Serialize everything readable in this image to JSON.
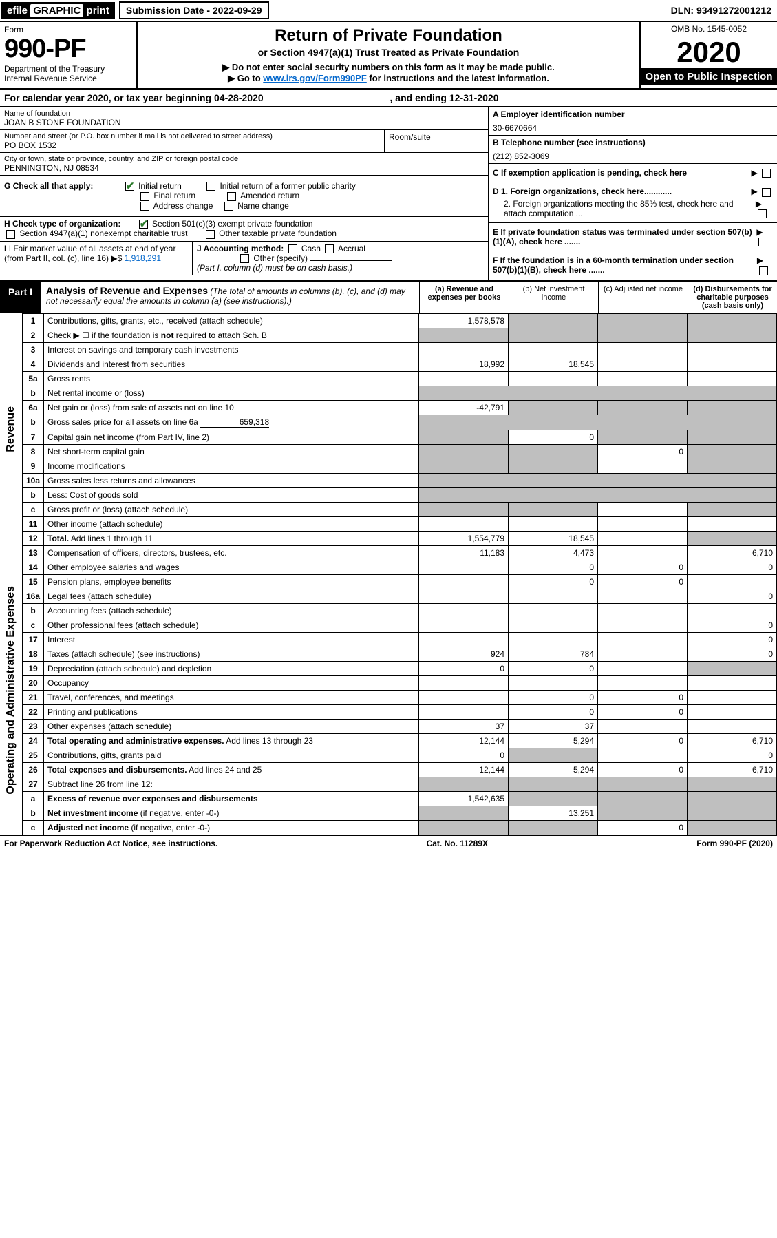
{
  "top": {
    "efile_prefix": "efile",
    "efile_graphic": "GRAPHIC",
    "efile_print": "print",
    "submission_label": "Submission Date - 2022-09-29",
    "dln": "DLN: 93491272001212"
  },
  "header": {
    "form_label": "Form",
    "form_number": "990-PF",
    "dept": "Department of the Treasury",
    "irs": "Internal Revenue Service",
    "title": "Return of Private Foundation",
    "subtitle": "or Section 4947(a)(1) Trust Treated as Private Foundation",
    "instr1": "▶ Do not enter social security numbers on this form as it may be made public.",
    "instr2_pre": "▶ Go to ",
    "instr2_link": "www.irs.gov/Form990PF",
    "instr2_post": " for instructions and the latest information.",
    "omb": "OMB No. 1545-0052",
    "year": "2020",
    "open": "Open to Public Inspection"
  },
  "calendar": {
    "text_pre": "For calendar year 2020, or tax year beginning ",
    "begin": "04-28-2020",
    "mid": " , and ending ",
    "end": "12-31-2020"
  },
  "foundation": {
    "name_label": "Name of foundation",
    "name": "JOAN B STONE FOUNDATION",
    "addr_label": "Number and street (or P.O. box number if mail is not delivered to street address)",
    "addr": "PO BOX 1532",
    "room_label": "Room/suite",
    "city_label": "City or town, state or province, country, and ZIP or foreign postal code",
    "city": "PENNINGTON, NJ  08534",
    "ein_label": "A Employer identification number",
    "ein": "30-6670664",
    "phone_label": "B Telephone number (see instructions)",
    "phone": "(212) 852-3069",
    "pending_label": "C If exemption application is pending, check here"
  },
  "boxG": {
    "label": "G Check all that apply:",
    "opts": [
      "Initial return",
      "Initial return of a former public charity",
      "Final return",
      "Amended return",
      "Address change",
      "Name change"
    ],
    "checked": [
      true,
      false,
      false,
      false,
      false,
      false
    ]
  },
  "boxH": {
    "label": "H Check type of organization:",
    "opt1": "Section 501(c)(3) exempt private foundation",
    "opt2": "Section 4947(a)(1) nonexempt charitable trust",
    "opt3": "Other taxable private foundation"
  },
  "boxI": {
    "label": "I Fair market value of all assets at end of year (from Part II, col. (c), line 16)",
    "arrow": "▶$",
    "value": "1,918,291"
  },
  "boxJ": {
    "label": "J Accounting method:",
    "opts": [
      "Cash",
      "Accrual",
      "Other (specify)"
    ],
    "note": "(Part I, column (d) must be on cash basis.)"
  },
  "boxD": {
    "d1": "D 1. Foreign organizations, check here............",
    "d2": "2. Foreign organizations meeting the 85% test, check here and attach computation ..."
  },
  "boxE": "E  If private foundation status was terminated under section 507(b)(1)(A), check here .......",
  "boxF": "F  If the foundation is in a 60-month termination under section 507(b)(1)(B), check here .......",
  "part1": {
    "label": "Part I",
    "title": "Analysis of Revenue and Expenses",
    "note": "(The total of amounts in columns (b), (c), and (d) may not necessarily equal the amounts in column (a) (see instructions).)",
    "col_a": "(a)  Revenue and expenses per books",
    "col_b": "(b)  Net investment income",
    "col_c": "(c)  Adjusted net income",
    "col_d": "(d)  Disbursements for charitable purposes (cash basis only)"
  },
  "side_labels": {
    "revenue": "Revenue",
    "expenses": "Operating and Administrative Expenses"
  },
  "rows": {
    "r1": {
      "ln": "1",
      "desc": "Contributions, gifts, grants, etc., received (attach schedule)",
      "a": "1,578,578",
      "b_grey": true,
      "c_grey": true,
      "d_grey": true
    },
    "r2": {
      "ln": "2",
      "desc": "Check ▶ ☐ if the foundation is <b>not</b> required to attach Sch. B",
      "a_grey": true,
      "b_grey": true,
      "c_grey": true,
      "d_grey": true
    },
    "r3": {
      "ln": "3",
      "desc": "Interest on savings and temporary cash investments"
    },
    "r4": {
      "ln": "4",
      "desc": "Dividends and interest from securities",
      "a": "18,992",
      "b": "18,545"
    },
    "r5a": {
      "ln": "5a",
      "desc": "Gross rents"
    },
    "r5b": {
      "ln": "b",
      "desc": "Net rental income or (loss)",
      "tail_grey": true
    },
    "r6a": {
      "ln": "6a",
      "desc": "Net gain or (loss) from sale of assets not on line 10",
      "a": "-42,791",
      "b_grey": true,
      "c_grey": true,
      "d_grey": true
    },
    "r6b": {
      "ln": "b",
      "desc": "Gross sales price for all assets on line 6a",
      "inline": "659,318",
      "tail_grey": true
    },
    "r7": {
      "ln": "7",
      "desc": "Capital gain net income (from Part IV, line 2)",
      "a_grey": true,
      "b": "0",
      "c_grey": true,
      "d_grey": true
    },
    "r8": {
      "ln": "8",
      "desc": "Net short-term capital gain",
      "a_grey": true,
      "b_grey": true,
      "c": "0",
      "d_grey": true
    },
    "r9": {
      "ln": "9",
      "desc": "Income modifications",
      "a_grey": true,
      "b_grey": true,
      "d_grey": true
    },
    "r10a": {
      "ln": "10a",
      "desc": "Gross sales less returns and allowances",
      "tail_grey": true
    },
    "r10b": {
      "ln": "b",
      "desc": "Less: Cost of goods sold",
      "tail_grey": true
    },
    "r10c": {
      "ln": "c",
      "desc": "Gross profit or (loss) (attach schedule)",
      "a_grey": true,
      "b_grey": true,
      "d_grey": true
    },
    "r11": {
      "ln": "11",
      "desc": "Other income (attach schedule)"
    },
    "r12": {
      "ln": "12",
      "desc": "<b>Total.</b> Add lines 1 through 11",
      "a": "1,554,779",
      "b": "18,545",
      "d_grey": true
    },
    "r13": {
      "ln": "13",
      "desc": "Compensation of officers, directors, trustees, etc.",
      "a": "11,183",
      "b": "4,473",
      "d": "6,710"
    },
    "r14": {
      "ln": "14",
      "desc": "Other employee salaries and wages",
      "b": "0",
      "c": "0",
      "d": "0"
    },
    "r15": {
      "ln": "15",
      "desc": "Pension plans, employee benefits",
      "b": "0",
      "c": "0"
    },
    "r16a": {
      "ln": "16a",
      "desc": "Legal fees (attach schedule)",
      "d": "0"
    },
    "r16b": {
      "ln": "b",
      "desc": "Accounting fees (attach schedule)"
    },
    "r16c": {
      "ln": "c",
      "desc": "Other professional fees (attach schedule)",
      "d": "0"
    },
    "r17": {
      "ln": "17",
      "desc": "Interest",
      "d": "0"
    },
    "r18": {
      "ln": "18",
      "desc": "Taxes (attach schedule) (see instructions)",
      "a": "924",
      "b": "784",
      "d": "0"
    },
    "r19": {
      "ln": "19",
      "desc": "Depreciation (attach schedule) and depletion",
      "a": "0",
      "b": "0",
      "d_grey": true
    },
    "r20": {
      "ln": "20",
      "desc": "Occupancy"
    },
    "r21": {
      "ln": "21",
      "desc": "Travel, conferences, and meetings",
      "b": "0",
      "c": "0"
    },
    "r22": {
      "ln": "22",
      "desc": "Printing and publications",
      "b": "0",
      "c": "0"
    },
    "r23": {
      "ln": "23",
      "desc": "Other expenses (attach schedule)",
      "a": "37",
      "b": "37"
    },
    "r24": {
      "ln": "24",
      "desc": "<b>Total operating and administrative expenses.</b> Add lines 13 through 23",
      "a": "12,144",
      "b": "5,294",
      "c": "0",
      "d": "6,710"
    },
    "r25": {
      "ln": "25",
      "desc": "Contributions, gifts, grants paid",
      "a": "0",
      "b_grey": true,
      "d": "0"
    },
    "r26": {
      "ln": "26",
      "desc": "<b>Total expenses and disbursements.</b> Add lines 24 and 25",
      "a": "12,144",
      "b": "5,294",
      "c": "0",
      "d": "6,710"
    },
    "r27": {
      "ln": "27",
      "desc": "Subtract line 26 from line 12:",
      "a_grey": true,
      "b_grey": true,
      "c_grey": true,
      "d_grey": true
    },
    "r27a": {
      "ln": "a",
      "desc": "<b>Excess of revenue over expenses and disbursements</b>",
      "a": "1,542,635",
      "b_grey": true,
      "c_grey": true,
      "d_grey": true
    },
    "r27b": {
      "ln": "b",
      "desc": "<b>Net investment income</b> (if negative, enter -0-)",
      "a_grey": true,
      "b": "13,251",
      "c_grey": true,
      "d_grey": true
    },
    "r27c": {
      "ln": "c",
      "desc": "<b>Adjusted net income</b> (if negative, enter -0-)",
      "a_grey": true,
      "b_grey": true,
      "c": "0",
      "d_grey": true
    }
  },
  "footer": {
    "left": "For Paperwork Reduction Act Notice, see instructions.",
    "mid": "Cat. No. 11289X",
    "right": "Form 990-PF (2020)"
  },
  "colors": {
    "grey": "#bfbfbf",
    "link": "#0066cc",
    "check_green": "#2a7a2a"
  }
}
